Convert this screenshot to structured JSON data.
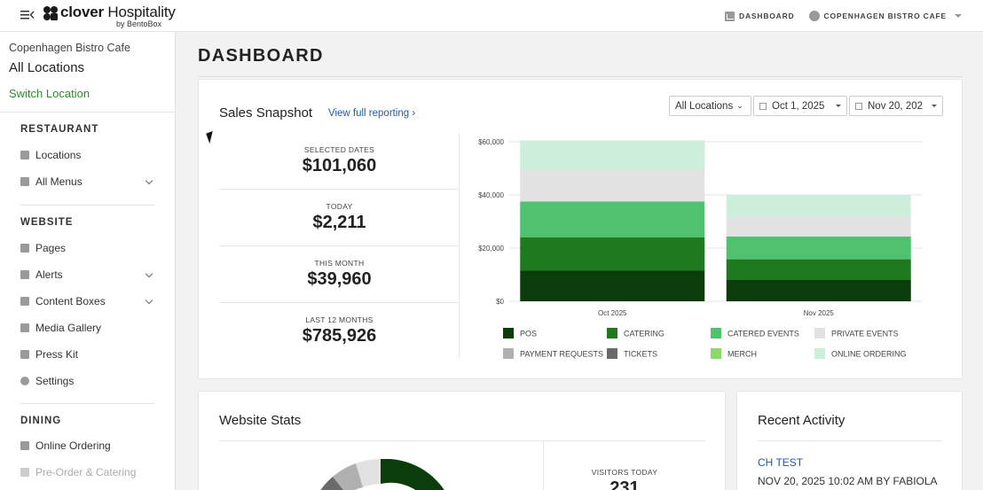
{
  "app": {
    "brand_name": "clover",
    "brand_suffix": "Hospitality",
    "brand_sub": "by BentoBox"
  },
  "topnav": {
    "dashboard": "DASHBOARD",
    "account": "COPENHAGEN BISTRO CAFE"
  },
  "sidebar": {
    "restaurant_name": "Copenhagen Bistro Cafe",
    "scope": "All Locations",
    "switch": "Switch Location",
    "sections": [
      {
        "title": "RESTAURANT",
        "items": [
          {
            "label": "Locations",
            "icon": "locations-icon"
          },
          {
            "label": "All Menus",
            "icon": "menus-icon",
            "expandable": true
          }
        ]
      },
      {
        "title": "WEBSITE",
        "items": [
          {
            "label": "Pages",
            "icon": "page-icon"
          },
          {
            "label": "Alerts",
            "icon": "alert-icon",
            "expandable": true
          },
          {
            "label": "Content Boxes",
            "icon": "grid-icon",
            "expandable": true
          },
          {
            "label": "Media Gallery",
            "icon": "gallery-icon"
          },
          {
            "label": "Press Kit",
            "icon": "file-icon"
          },
          {
            "label": "Settings",
            "icon": "gear-icon"
          }
        ]
      },
      {
        "title": "DINING",
        "items": [
          {
            "label": "Online Ordering",
            "icon": "bag-icon"
          },
          {
            "label": "Pre-Order & Catering",
            "icon": "utensils-icon"
          }
        ]
      }
    ]
  },
  "page": {
    "title": "DASHBOARD"
  },
  "sales": {
    "title": "Sales Snapshot",
    "link": "View full reporting ›",
    "filter_location": "All Locations",
    "date_from": "Oct 1, 2025",
    "date_to": "Nov 20, 202",
    "stats": [
      {
        "label": "SELECTED DATES",
        "value": "$101,060"
      },
      {
        "label": "TODAY",
        "value": "$2,211"
      },
      {
        "label": "THIS MONTH",
        "value": "$39,960"
      },
      {
        "label": "LAST 12 MONTHS",
        "value": "$785,926"
      }
    ]
  },
  "chart_data": {
    "type": "bar",
    "stacked": true,
    "categories": [
      "Oct 2025",
      "Nov 2025"
    ],
    "ylim": [
      0,
      60000
    ],
    "yticks": [
      "$0",
      "$20,000",
      "$40,000",
      "$60,000"
    ],
    "ytick_values": [
      0,
      20000,
      40000,
      60000
    ],
    "series": [
      {
        "name": "POS",
        "color": "#0b3d0b",
        "values": [
          11500,
          8000
        ]
      },
      {
        "name": "CATERING",
        "color": "#1f7a1f",
        "values": [
          12500,
          7800
        ]
      },
      {
        "name": "CATERED EVENTS",
        "color": "#4fc16f",
        "values": [
          13500,
          8600
        ]
      },
      {
        "name": "PRIVATE EVENTS",
        "color": "#e2e2e2",
        "values": [
          11800,
          7400
        ]
      },
      {
        "name": "PAYMENT REQUESTS",
        "color": "#b0b0b0",
        "values": [
          0,
          0
        ]
      },
      {
        "name": "TICKETS",
        "color": "#6a6a6a",
        "values": [
          0,
          0
        ]
      },
      {
        "name": "MERCH",
        "color": "#8bd86b",
        "values": [
          0,
          0
        ]
      },
      {
        "name": "ONLINE ORDERING",
        "color": "#cdeedb",
        "values": [
          11200,
          8200
        ]
      }
    ],
    "legend_position": "bottom"
  },
  "website_stats": {
    "title": "Website Stats",
    "visitors_label": "VISITORS TODAY",
    "visitors_value": "231"
  },
  "activity": {
    "title": "Recent Activity",
    "item_title": "CH TEST",
    "item_meta": "NOV 20, 2025 10:02 AM BY FABIOLA"
  }
}
